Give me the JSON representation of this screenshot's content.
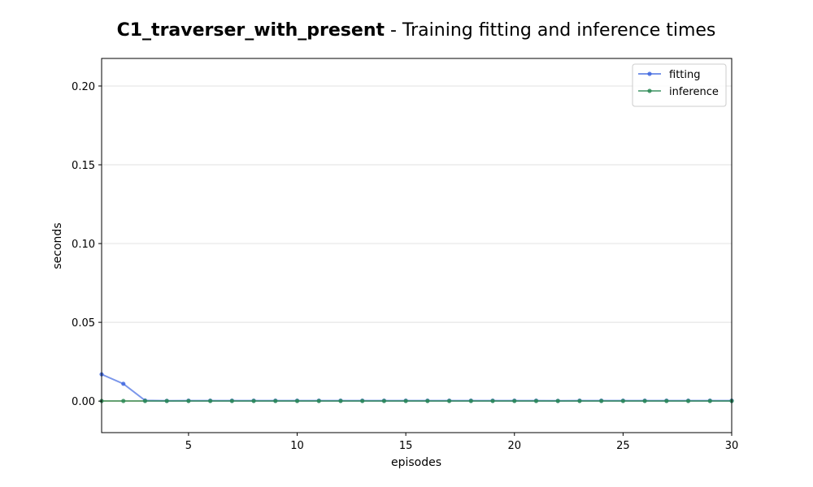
{
  "chart_data": {
    "type": "line",
    "title": "C1_traverser_with_present",
    "subtitle": " - Training fitting and inference times",
    "xlabel": "episodes",
    "ylabel": "seconds",
    "xlim": [
      1,
      30
    ],
    "ylim": [
      -0.02,
      0.2175
    ],
    "xticks": [
      5,
      10,
      15,
      20,
      25,
      30
    ],
    "xtick_labels": [
      "5",
      "10",
      "15",
      "20",
      "25",
      "30"
    ],
    "yticks": [
      0.0,
      0.05,
      0.1,
      0.15,
      0.2
    ],
    "ytick_labels": [
      "0.00",
      "0.05",
      "0.10",
      "0.15",
      "0.20"
    ],
    "grid": "horizontal",
    "legend_position": "top-right",
    "x": [
      1,
      2,
      3,
      4,
      5,
      6,
      7,
      8,
      9,
      10,
      11,
      12,
      13,
      14,
      15,
      16,
      17,
      18,
      19,
      20,
      21,
      22,
      23,
      24,
      25,
      26,
      27,
      28,
      29,
      30
    ],
    "series": [
      {
        "name": "fitting",
        "color": "#4169e1",
        "values": [
          0.017,
          0.011,
          0.0004,
          0.0002,
          0.0003,
          0.0003,
          0.0003,
          0.0003,
          0.0003,
          0.0003,
          0.0003,
          0.0003,
          0.0003,
          0.0003,
          0.0003,
          0.0003,
          0.0003,
          0.0003,
          0.0003,
          0.0003,
          0.0003,
          0.0002,
          0.0003,
          0.0003,
          0.0003,
          0.0003,
          0.0003,
          0.0003,
          0.0003,
          0.0003
        ]
      },
      {
        "name": "inference",
        "color": "#2e8b57",
        "values": [
          0.0001,
          0.0001,
          0.0001,
          0.0001,
          0.0001,
          0.0001,
          0.0001,
          0.0001,
          0.0001,
          0.0001,
          0.0001,
          0.0001,
          0.0001,
          0.0001,
          0.0001,
          0.0001,
          0.0001,
          0.0001,
          0.0001,
          0.0001,
          0.0001,
          0.0001,
          0.0001,
          0.0001,
          0.0001,
          0.0001,
          0.0001,
          0.0001,
          0.0001,
          0.0001
        ]
      }
    ],
    "baseline_color": "#b8860b"
  }
}
